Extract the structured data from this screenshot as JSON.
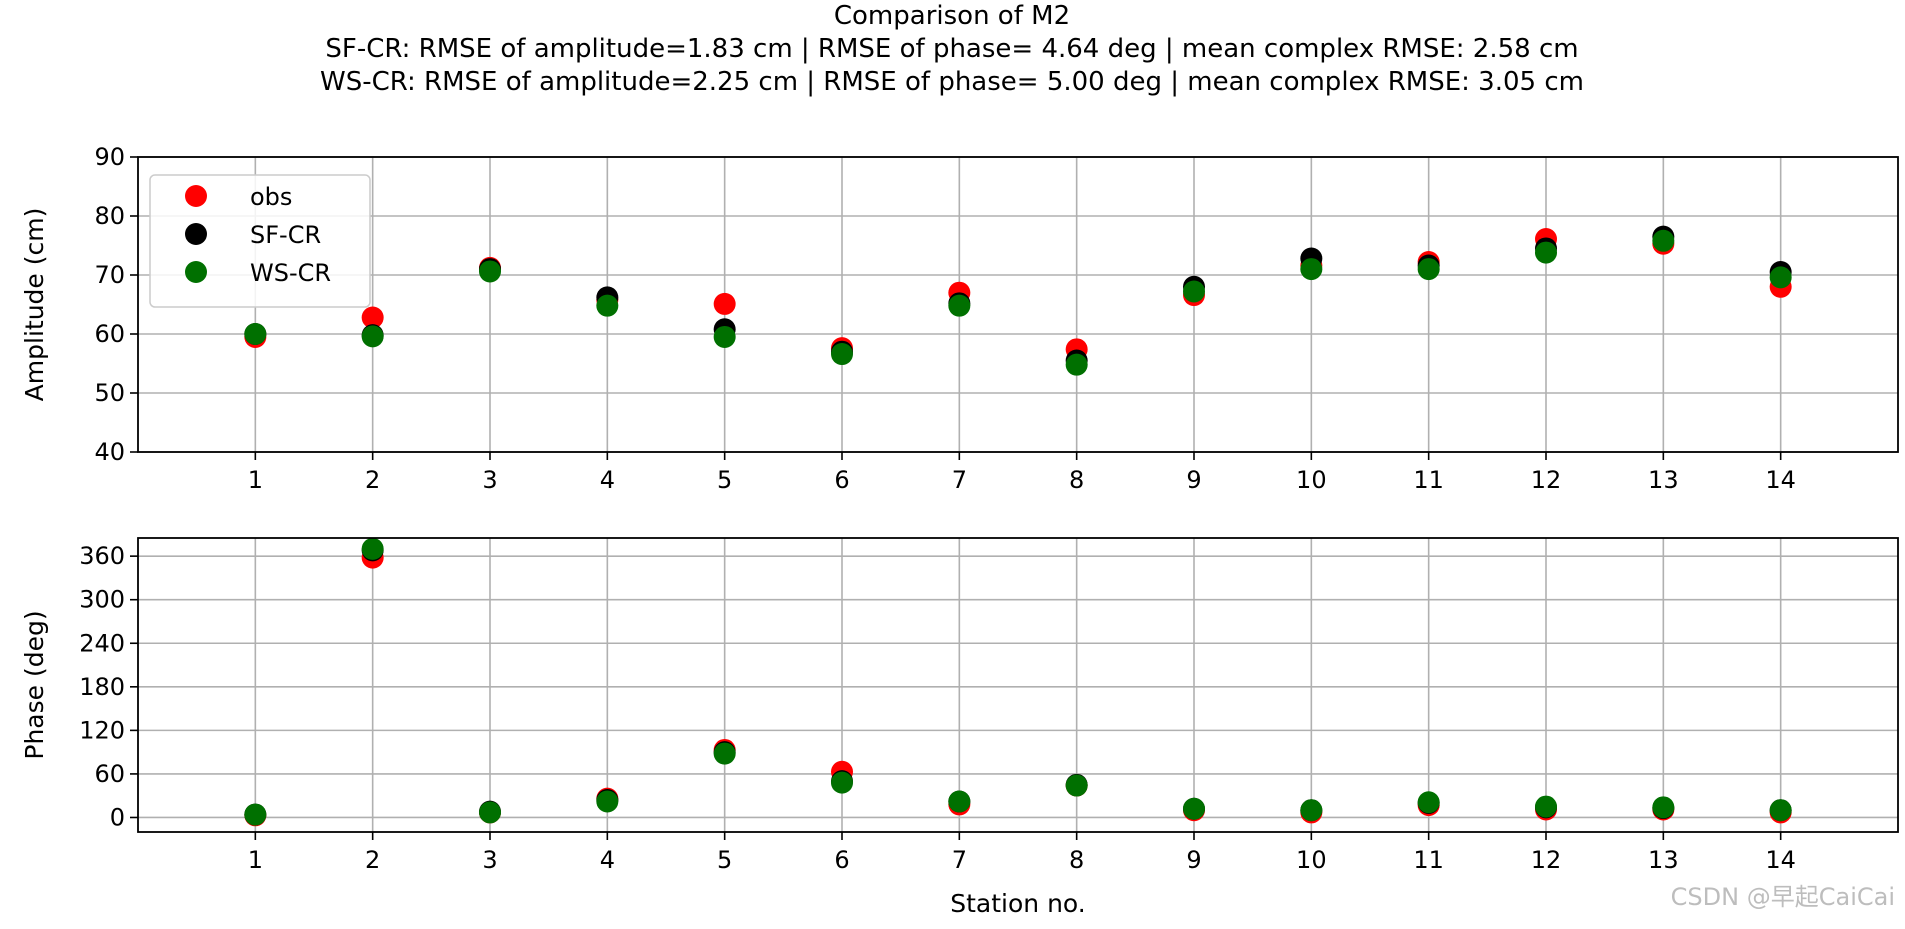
{
  "figure": {
    "title_lines": [
      "Comparison of M2",
      "SF-CR: RMSE of amplitude=1.83 cm | RMSE of phase= 4.64 deg | mean complex RMSE: 2.58 cm",
      "WS-CR: RMSE of amplitude=2.25 cm | RMSE of phase= 5.00 deg | mean complex RMSE: 3.05 cm"
    ],
    "watermark": "CSDN @早起CaiCai"
  },
  "chart_data": [
    {
      "type": "scatter",
      "ylabel": "Amplitude (cm)",
      "xlabel": "",
      "x": [
        1,
        2,
        3,
        4,
        5,
        6,
        7,
        8,
        9,
        10,
        11,
        12,
        13,
        14
      ],
      "xticks": [
        "1",
        "2",
        "3",
        "4",
        "5",
        "6",
        "7",
        "8",
        "9",
        "10",
        "11",
        "12",
        "13",
        "14"
      ],
      "xlim": [
        0,
        15
      ],
      "ylim": [
        40,
        90
      ],
      "yticks": [
        40,
        50,
        60,
        70,
        80,
        90
      ],
      "grid": true,
      "legend": "upper left",
      "series": [
        {
          "name": "obs",
          "color": "#ff0000",
          "values": [
            59.5,
            62.8,
            71.2,
            65.8,
            65.1,
            57.6,
            67.0,
            57.4,
            66.6,
            71.6,
            72.2,
            76.1,
            75.3,
            68.0
          ]
        },
        {
          "name": "SF-CR",
          "color": "#000000",
          "values": [
            60.0,
            59.8,
            71.0,
            66.2,
            60.8,
            57.0,
            65.2,
            55.5,
            68.0,
            72.8,
            71.6,
            74.5,
            76.5,
            70.5
          ]
        },
        {
          "name": "WS-CR",
          "color": "#007000",
          "values": [
            60.0,
            59.6,
            70.6,
            64.8,
            59.5,
            56.6,
            64.8,
            54.8,
            67.2,
            71.0,
            71.0,
            73.8,
            75.8,
            69.6
          ]
        }
      ]
    },
    {
      "type": "scatter",
      "ylabel": "Phase (deg)",
      "xlabel": "Station no.",
      "x": [
        1,
        2,
        3,
        4,
        5,
        6,
        7,
        8,
        9,
        10,
        11,
        12,
        13,
        14
      ],
      "xticks": [
        "1",
        "2",
        "3",
        "4",
        "5",
        "6",
        "7",
        "8",
        "9",
        "10",
        "11",
        "12",
        "13",
        "14"
      ],
      "xlim": [
        0,
        15
      ],
      "ylim": [
        -20,
        385
      ],
      "yticks": [
        0,
        60,
        120,
        180,
        240,
        300,
        360
      ],
      "grid": true,
      "series": [
        {
          "name": "obs",
          "color": "#ff0000",
          "values": [
            3,
            358,
            7,
            26,
            93,
            63,
            18,
            44,
            10,
            7,
            17,
            11,
            11,
            7
          ]
        },
        {
          "name": "SF-CR",
          "color": "#000000",
          "values": [
            4,
            368,
            8,
            24,
            90,
            50,
            22,
            45,
            12,
            10,
            20,
            14,
            13,
            10
          ]
        },
        {
          "name": "WS-CR",
          "color": "#007000",
          "values": [
            4,
            370,
            7,
            22,
            88,
            48,
            22,
            44,
            12,
            10,
            21,
            15,
            14,
            10
          ]
        }
      ]
    }
  ]
}
